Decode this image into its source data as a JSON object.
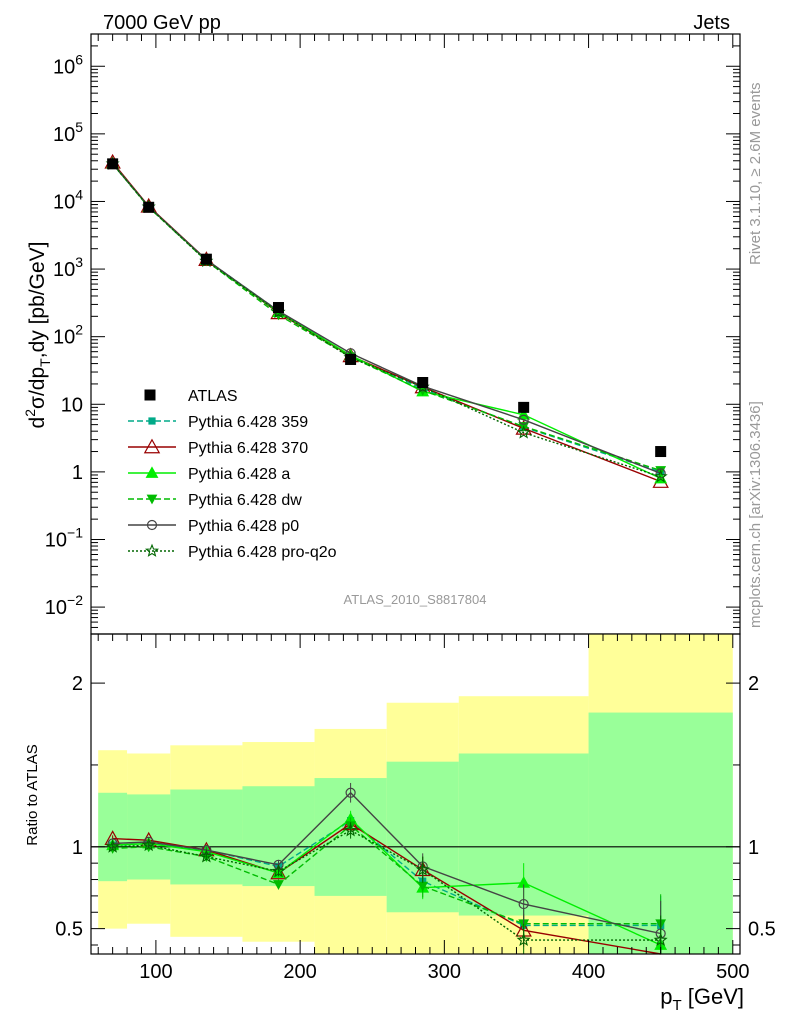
{
  "header": {
    "left": "7000 GeV pp",
    "right": "Jets"
  },
  "side_labels": {
    "rivet": "Rivet 3.1.10, ≥ 2.6M events",
    "mcplots": "mcplots.cern.ch [arXiv:1306.3436]"
  },
  "analysis_id": "ATLAS_2010_S8817804",
  "colors": {
    "data": "#000000",
    "yellow": "#ffff99",
    "green": "#99ff99"
  },
  "chart_data": [
    {
      "name": "main",
      "type": "line",
      "yscale": "log",
      "ylabel": "d²σ/dp_T,dy [pb/GeV]",
      "xlim": [
        55,
        505
      ],
      "ylim": [
        0.004,
        3000000
      ],
      "y_ticks": [
        {
          "value": 1000000,
          "label": "10^6"
        },
        {
          "value": 100000,
          "label": "10^5"
        },
        {
          "value": 10000,
          "label": "10^4"
        },
        {
          "value": 1000,
          "label": "10^3"
        },
        {
          "value": 100,
          "label": "10^2"
        },
        {
          "value": 10,
          "label": "10"
        },
        {
          "value": 1,
          "label": "1"
        },
        {
          "value": 0.1,
          "label": "10^−1"
        },
        {
          "value": 0.01,
          "label": "10^−2"
        }
      ],
      "x": [
        70,
        95,
        135,
        185,
        235,
        285,
        355,
        450
      ],
      "data": {
        "name": "ATLAS",
        "values": [
          36000,
          8200,
          1400,
          270,
          46,
          21,
          9,
          2
        ]
      },
      "series": [
        {
          "name": "Pythia 6.428 359",
          "color": "#00aa88",
          "dash": "6,3",
          "marker": "square",
          "values": [
            36500,
            8300,
            1370,
            240,
            52,
            17,
            4.6,
            1.0
          ]
        },
        {
          "name": "Pythia 6.428 370",
          "color": "#990000",
          "dash": "",
          "marker": "triangle-open",
          "values": [
            38000,
            8500,
            1380,
            225,
            52,
            18,
            4.4,
            0.72
          ]
        },
        {
          "name": "Pythia 6.428 a",
          "color": "#00ee00",
          "dash": "",
          "marker": "triangle",
          "values": [
            36500,
            8300,
            1360,
            230,
            53,
            15.5,
            7.0,
            0.8
          ]
        },
        {
          "name": "Pythia 6.428 dw",
          "color": "#00bb00",
          "dash": "6,3",
          "marker": "triangle-down",
          "values": [
            36000,
            8200,
            1320,
            210,
            50,
            16,
            4.7,
            1.05
          ]
        },
        {
          "name": "Pythia 6.428 p0",
          "color": "#444444",
          "dash": "",
          "marker": "circle-open",
          "values": [
            36500,
            8400,
            1370,
            240,
            57,
            18.5,
            5.9,
            0.95
          ]
        },
        {
          "name": "Pythia 6.428 pro-q2o",
          "color": "#006600",
          "dash": "2,2",
          "marker": "star-open",
          "values": [
            36000,
            8300,
            1310,
            230,
            49,
            18,
            3.8,
            0.85
          ]
        }
      ]
    },
    {
      "name": "ratio",
      "type": "line",
      "ylabel": "Ratio to ATLAS",
      "xlabel": "p_T [GeV]",
      "xlim": [
        55,
        505
      ],
      "ylim": [
        0.345,
        2.3
      ],
      "x_ticks": [
        100,
        200,
        300,
        400,
        500
      ],
      "y_ticks": [
        0.5,
        1,
        2
      ],
      "bands": [
        {
          "x0": 60,
          "x1": 80,
          "yellow": [
            0.5,
            1.59
          ],
          "green": [
            0.79,
            1.33
          ]
        },
        {
          "x0": 80,
          "x1": 110,
          "yellow": [
            0.53,
            1.57
          ],
          "green": [
            0.8,
            1.32
          ]
        },
        {
          "x0": 110,
          "x1": 160,
          "yellow": [
            0.45,
            1.62
          ],
          "green": [
            0.77,
            1.35
          ]
        },
        {
          "x0": 160,
          "x1": 210,
          "yellow": [
            0.42,
            1.64
          ],
          "green": [
            0.76,
            1.37
          ]
        },
        {
          "x0": 210,
          "x1": 260,
          "yellow": [
            0.345,
            1.72
          ],
          "green": [
            0.7,
            1.42
          ]
        },
        {
          "x0": 260,
          "x1": 310,
          "yellow": [
            0.345,
            1.88
          ],
          "green": [
            0.6,
            1.52
          ]
        },
        {
          "x0": 310,
          "x1": 400,
          "yellow": [
            0.345,
            1.92
          ],
          "green": [
            0.58,
            1.57
          ]
        },
        {
          "x0": 400,
          "x1": 500,
          "yellow": [
            0.345,
            2.3
          ],
          "green": [
            0.345,
            1.82
          ]
        }
      ],
      "x": [
        70,
        95,
        135,
        185,
        235,
        285,
        355,
        450
      ],
      "series": [
        {
          "name": "Pythia 6.428 359",
          "values": [
            1.01,
            1.02,
            0.98,
            0.88,
            1.16,
            0.79,
            0.52,
            0.52
          ],
          "err": [
            0.02,
            0.02,
            0.02,
            0.03,
            0.05,
            0.07,
            0.1,
            0.18
          ]
        },
        {
          "name": "Pythia 6.428 370",
          "values": [
            1.05,
            1.04,
            0.98,
            0.84,
            1.14,
            0.86,
            0.49,
            0.33
          ],
          "err": [
            0.02,
            0.02,
            0.02,
            0.03,
            0.05,
            0.08,
            0.1,
            0.15
          ]
        },
        {
          "name": "Pythia 6.428 a",
          "values": [
            1.01,
            1.02,
            0.97,
            0.84,
            1.17,
            0.75,
            0.78,
            0.4
          ],
          "err": [
            0.02,
            0.02,
            0.02,
            0.03,
            0.05,
            0.07,
            0.12,
            0.15
          ]
        },
        {
          "name": "Pythia 6.428 dw",
          "values": [
            0.99,
            1.0,
            0.94,
            0.77,
            1.13,
            0.76,
            0.53,
            0.53
          ],
          "err": [
            0.02,
            0.02,
            0.02,
            0.03,
            0.05,
            0.07,
            0.1,
            0.18
          ]
        },
        {
          "name": "Pythia 6.428 p0",
          "values": [
            1.02,
            1.03,
            0.98,
            0.89,
            1.33,
            0.88,
            0.65,
            0.47
          ],
          "err": [
            0.02,
            0.02,
            0.02,
            0.03,
            0.06,
            0.08,
            0.12,
            0.2
          ]
        },
        {
          "name": "Pythia 6.428 pro-q2o",
          "values": [
            1.0,
            1.01,
            0.94,
            0.85,
            1.1,
            0.86,
            0.43,
            0.43
          ],
          "err": [
            0.02,
            0.02,
            0.02,
            0.03,
            0.05,
            0.08,
            0.1,
            0.15
          ]
        }
      ]
    }
  ]
}
